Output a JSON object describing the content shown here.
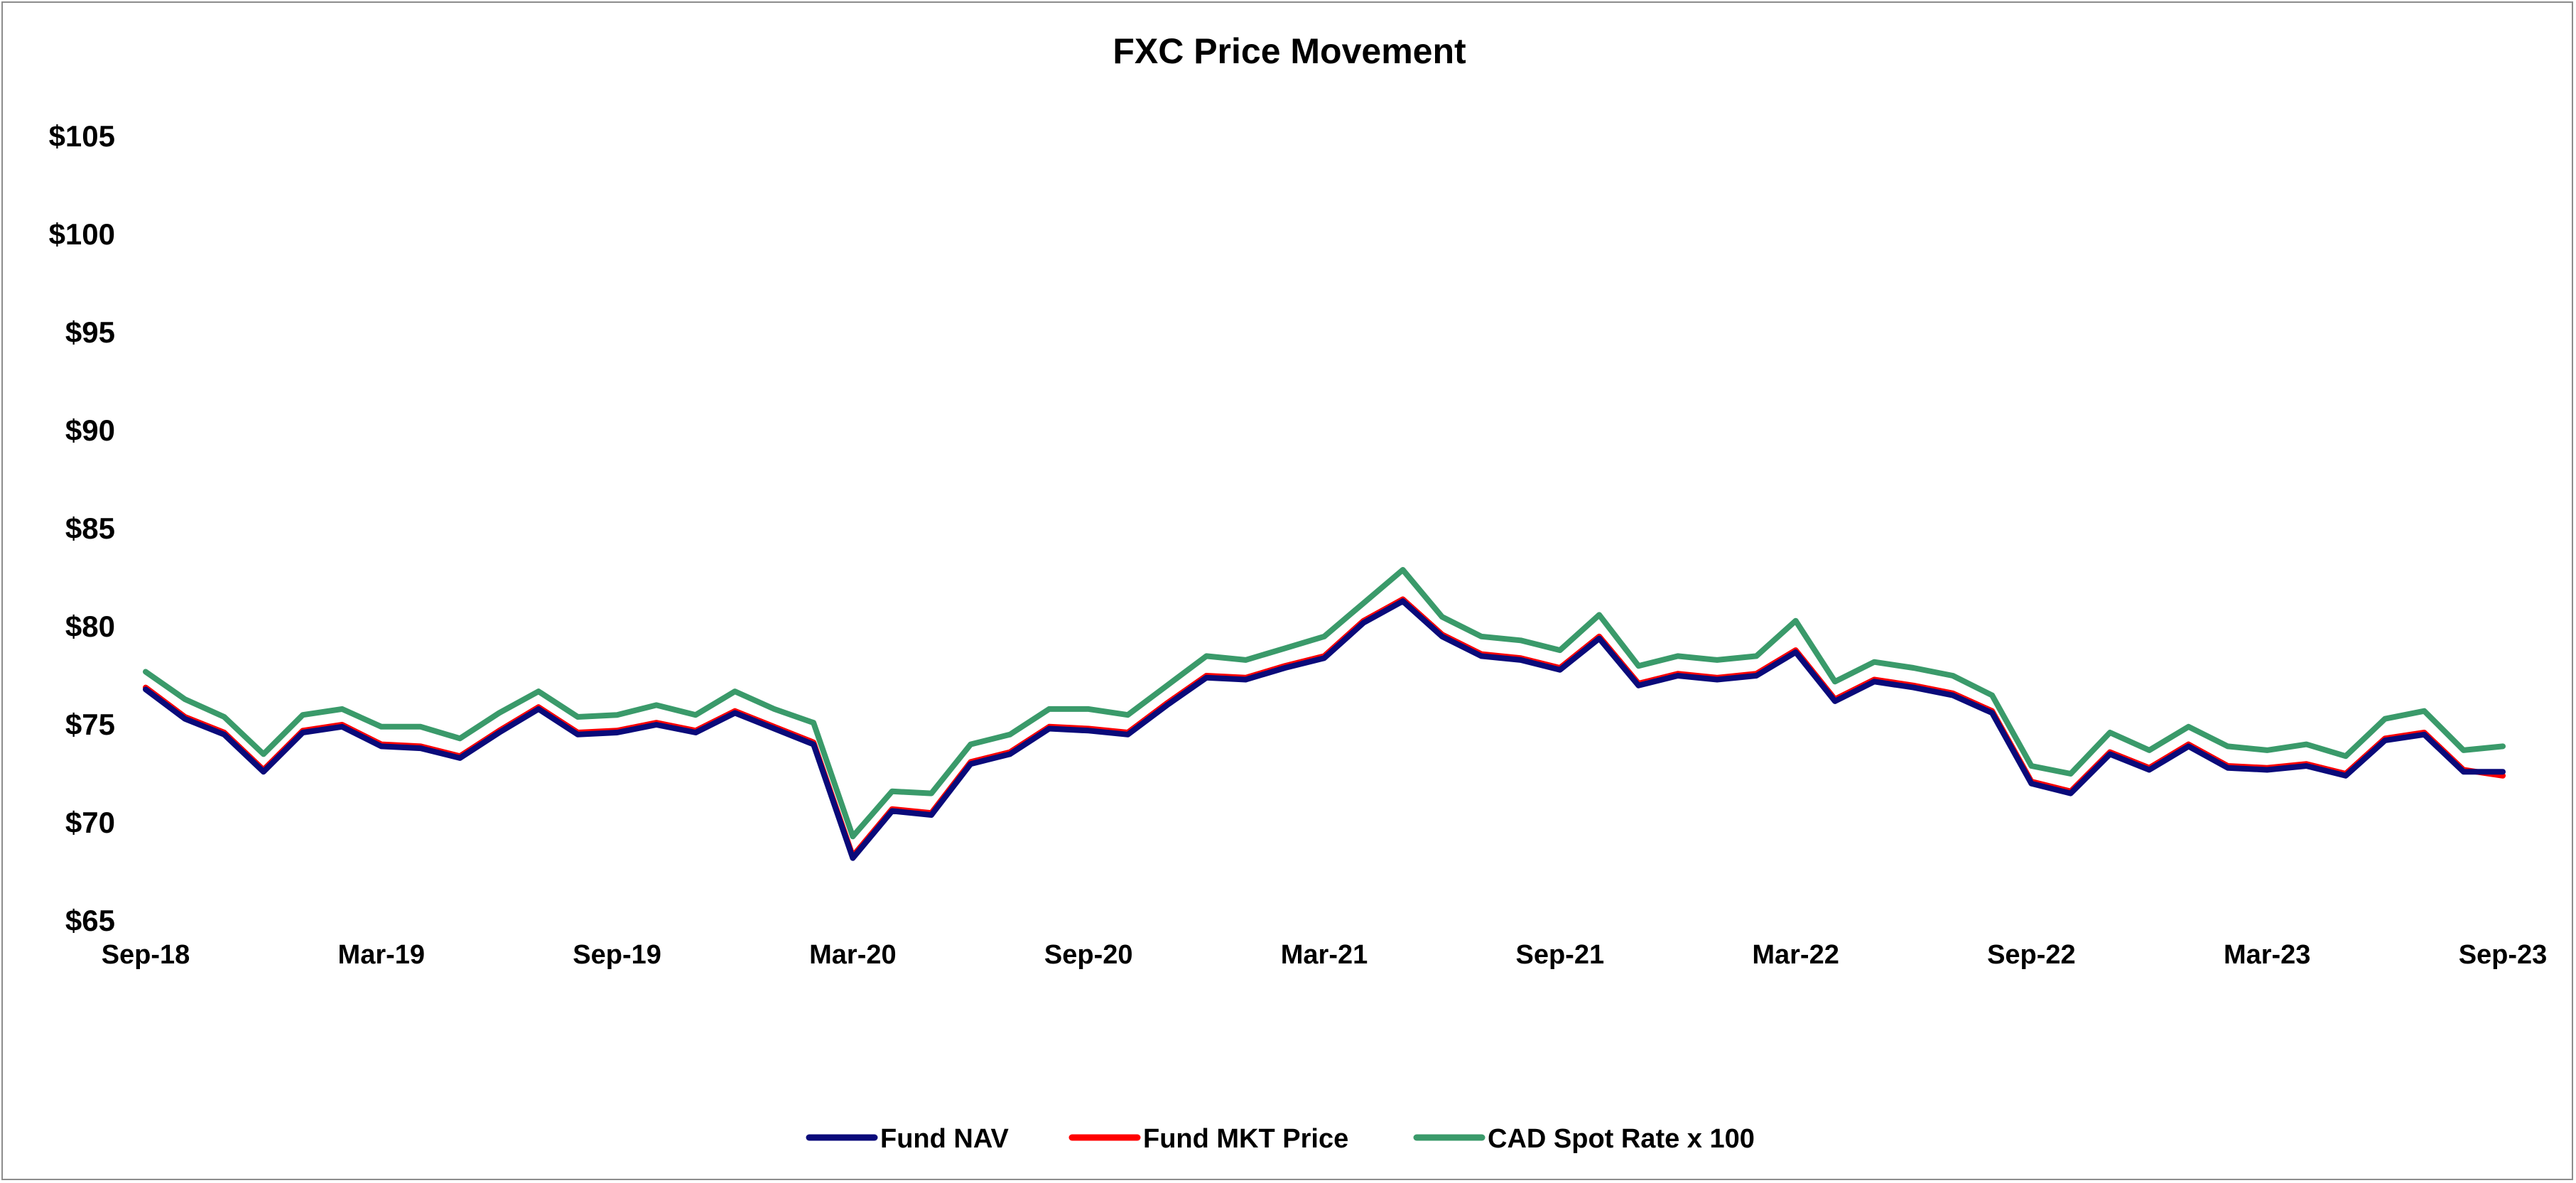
{
  "chart_data": {
    "type": "line",
    "title": "FXC Price Movement",
    "xlabel": "",
    "ylabel": "",
    "ylim": [
      65,
      105
    ],
    "y_ticks": [
      65,
      70,
      75,
      80,
      85,
      90,
      95,
      100,
      105
    ],
    "y_tick_labels": [
      "$65",
      "$70",
      "$75",
      "$80",
      "$85",
      "$90",
      "$95",
      "$100",
      "$105"
    ],
    "x_tick_labels": [
      "Sep-18",
      "Mar-19",
      "Sep-19",
      "Mar-20",
      "Sep-20",
      "Mar-21",
      "Sep-21",
      "Mar-22",
      "Sep-22",
      "Mar-23",
      "Sep-23"
    ],
    "x_range": [
      "2018-09",
      "2023-09"
    ],
    "x": [
      "2018-09",
      "2018-10",
      "2018-11",
      "2018-12",
      "2019-01",
      "2019-02",
      "2019-03",
      "2019-04",
      "2019-05",
      "2019-06",
      "2019-07",
      "2019-08",
      "2019-09",
      "2019-10",
      "2019-11",
      "2019-12",
      "2020-01",
      "2020-02",
      "2020-03",
      "2020-04",
      "2020-05",
      "2020-06",
      "2020-07",
      "2020-08",
      "2020-09",
      "2020-10",
      "2020-11",
      "2020-12",
      "2021-01",
      "2021-02",
      "2021-03",
      "2021-04",
      "2021-05",
      "2021-06",
      "2021-07",
      "2021-08",
      "2021-09",
      "2021-10",
      "2021-11",
      "2021-12",
      "2022-01",
      "2022-02",
      "2022-03",
      "2022-04",
      "2022-05",
      "2022-06",
      "2022-07",
      "2022-08",
      "2022-09",
      "2022-10",
      "2022-11",
      "2022-12",
      "2023-01",
      "2023-02",
      "2023-03",
      "2023-04",
      "2023-05",
      "2023-06",
      "2023-07",
      "2023-08",
      "2023-09"
    ],
    "grid": false,
    "legend_position": "bottom",
    "series": [
      {
        "name": "Fund NAV",
        "color": "#0a0a7a",
        "values": [
          76.8,
          75.3,
          74.5,
          72.6,
          74.6,
          74.9,
          73.9,
          73.8,
          73.3,
          74.6,
          75.8,
          74.5,
          74.6,
          75.0,
          74.6,
          75.6,
          74.8,
          74.0,
          68.2,
          70.6,
          70.4,
          73.0,
          73.5,
          74.8,
          74.7,
          74.5,
          76.0,
          77.4,
          77.3,
          77.9,
          78.4,
          80.2,
          81.3,
          79.5,
          78.5,
          78.3,
          77.8,
          79.4,
          77.0,
          77.5,
          77.3,
          77.5,
          78.7,
          76.2,
          77.2,
          76.9,
          76.5,
          75.6,
          72.0,
          71.5,
          73.5,
          72.7,
          73.9,
          72.8,
          72.7,
          72.9,
          72.4,
          74.2,
          74.5,
          72.6,
          72.6
        ]
      },
      {
        "name": "Fund MKT Price",
        "color": "#ff0000",
        "values": [
          76.9,
          75.4,
          74.6,
          72.7,
          74.7,
          75.0,
          74.0,
          73.9,
          73.4,
          74.7,
          75.9,
          74.6,
          74.7,
          75.1,
          74.7,
          75.7,
          74.9,
          74.1,
          68.3,
          70.7,
          70.5,
          73.1,
          73.6,
          74.9,
          74.8,
          74.6,
          76.1,
          77.5,
          77.4,
          78.0,
          78.5,
          80.3,
          81.4,
          79.6,
          78.6,
          78.4,
          77.9,
          79.5,
          77.1,
          77.6,
          77.4,
          77.6,
          78.8,
          76.3,
          77.3,
          77.0,
          76.6,
          75.7,
          72.1,
          71.6,
          73.6,
          72.8,
          74.0,
          72.9,
          72.8,
          73.0,
          72.5,
          74.3,
          74.6,
          72.7,
          72.4
        ]
      },
      {
        "name": "CAD Spot Rate x 100",
        "color": "#3a9a6a",
        "values": [
          77.7,
          76.3,
          75.4,
          73.5,
          75.5,
          75.8,
          74.9,
          74.9,
          74.3,
          75.6,
          76.7,
          75.4,
          75.5,
          76.0,
          75.5,
          76.7,
          75.8,
          75.1,
          69.3,
          71.6,
          71.5,
          74.0,
          74.5,
          75.8,
          75.8,
          75.5,
          77.0,
          78.5,
          78.3,
          78.9,
          79.5,
          81.2,
          82.9,
          80.5,
          79.5,
          79.3,
          78.8,
          80.6,
          78.0,
          78.5,
          78.3,
          78.5,
          80.3,
          77.2,
          78.2,
          77.9,
          77.5,
          76.5,
          72.9,
          72.5,
          74.6,
          73.7,
          74.9,
          73.9,
          73.7,
          74.0,
          73.4,
          75.3,
          75.7,
          73.7,
          73.9
        ]
      }
    ]
  }
}
